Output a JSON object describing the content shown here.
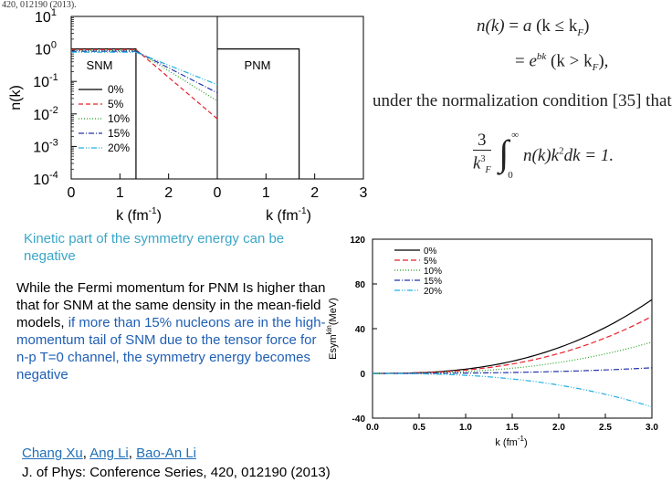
{
  "header": {
    "citation_fragment": "420, 012190 (2013)."
  },
  "chart_data": [
    {
      "type": "line",
      "panels": [
        {
          "label": "SNM",
          "xlim": [
            0,
            3
          ],
          "kF": 1.33
        },
        {
          "label": "PNM",
          "xlim": [
            0,
            3
          ],
          "kF": 1.68
        }
      ],
      "ylabel": "n(k)",
      "ylim_log10": [
        -4,
        1
      ],
      "y_scale": "log",
      "y_tick_base": "10",
      "y_tick_exponents": [
        "1",
        "0",
        "-1",
        "-2",
        "-3",
        "-4"
      ],
      "x_ticks": [
        "0",
        "1",
        "2",
        "0",
        "1",
        "2",
        "3"
      ],
      "xlabel": "k (fm",
      "xlabel_exp": "-1",
      "xlabel_close": ")",
      "legend_placement": "left",
      "series": [
        {
          "name": "0%",
          "color": "#000000",
          "dash": "",
          "snm_log": [
            [
              1.33,
              0.0
            ]
          ],
          "pnm_log": [
            [
              1.68,
              0.0
            ]
          ]
        },
        {
          "name": "5%",
          "color": "#e8202a",
          "dash": "5,3",
          "snm_log": [
            [
              1.33,
              -0.02
            ],
            [
              3.0,
              -2.15
            ]
          ],
          "pnm_log": []
        },
        {
          "name": "10%",
          "color": "#22a022",
          "dash": "1,2",
          "snm_log": [
            [
              1.33,
              -0.05
            ],
            [
              3.0,
              -1.6
            ]
          ],
          "pnm_log": []
        },
        {
          "name": "15%",
          "color": "#2233aa",
          "dash": "6,2,1,2",
          "snm_log": [
            [
              1.33,
              -0.07
            ],
            [
              3.0,
              -1.35
            ]
          ],
          "pnm_log": []
        },
        {
          "name": "20%",
          "color": "#20b0e0",
          "dash": "6,2,1,2,1,2",
          "snm_log": [
            [
              1.33,
              -0.1
            ],
            [
              3.0,
              -1.1
            ]
          ],
          "pnm_log": []
        }
      ]
    },
    {
      "type": "line",
      "ylabel_main": "Esym",
      "ylabel_sup": "kin",
      "ylabel_unit": "(MeV)",
      "xlabel": "k (fm",
      "xlabel_exp": "-1",
      "xlabel_close": ")",
      "xlim": [
        0.0,
        3.0
      ],
      "ylim": [
        -40,
        120
      ],
      "x_ticks": [
        "0.0",
        "0.5",
        "1.0",
        "1.5",
        "2.0",
        "2.5",
        "3.0"
      ],
      "y_ticks": [
        "-40",
        "0",
        "40",
        "80",
        "120"
      ],
      "legend_placement": "top-left",
      "series": [
        {
          "name": "0%",
          "color": "#000000",
          "dash": "",
          "end_value": 66
        },
        {
          "name": "5%",
          "color": "#e8202a",
          "dash": "6,3",
          "end_value": 51
        },
        {
          "name": "10%",
          "color": "#22a022",
          "dash": "1,2",
          "end_value": 28
        },
        {
          "name": "15%",
          "color": "#2233aa",
          "dash": "6,2,1,2",
          "end_value": 5
        },
        {
          "name": "20%",
          "color": "#20b0e0",
          "dash": "6,2,1,2,1,2",
          "end_value": -30
        }
      ]
    }
  ],
  "equations": {
    "nk_label": "n(k)",
    "eq_sign": "=",
    "a_term": "a",
    "cond1": "(k ≤ k",
    "kF_sub": "F",
    "cond1_close": ")",
    "exp_base": "e",
    "exp_power": "bk",
    "cond2": "(k > k",
    "cond2_close": "),",
    "normalization_text": "under the normalization condition [35] that",
    "frac_num": "3",
    "frac_den": "k",
    "frac_den_sub": "F",
    "frac_den_sup": "3",
    "int_upper": "∞",
    "int_lower": "0",
    "integrand": "n(k)k",
    "integrand_sup": "2",
    "integrand_tail": "dk = 1."
  },
  "kinetic_note": "Kinetic part of the symmetry energy can be negative",
  "explanation": {
    "black_part": "While the Fermi momentum for PNM Is higher than that for SNM at the same density in the mean-field models,",
    "blue_part": "if more than 15% nucleons are in the high-momentum tail of SNM due to the tensor force for n-p T=0 channel, the symmetry energy becomes negative"
  },
  "reference": {
    "authors": [
      "Chang Xu",
      "Ang Li",
      "Bao-An Li"
    ],
    "separator": ", ",
    "journal": "J. of Phys: Conference Series, 420, 012190 (2013)"
  }
}
